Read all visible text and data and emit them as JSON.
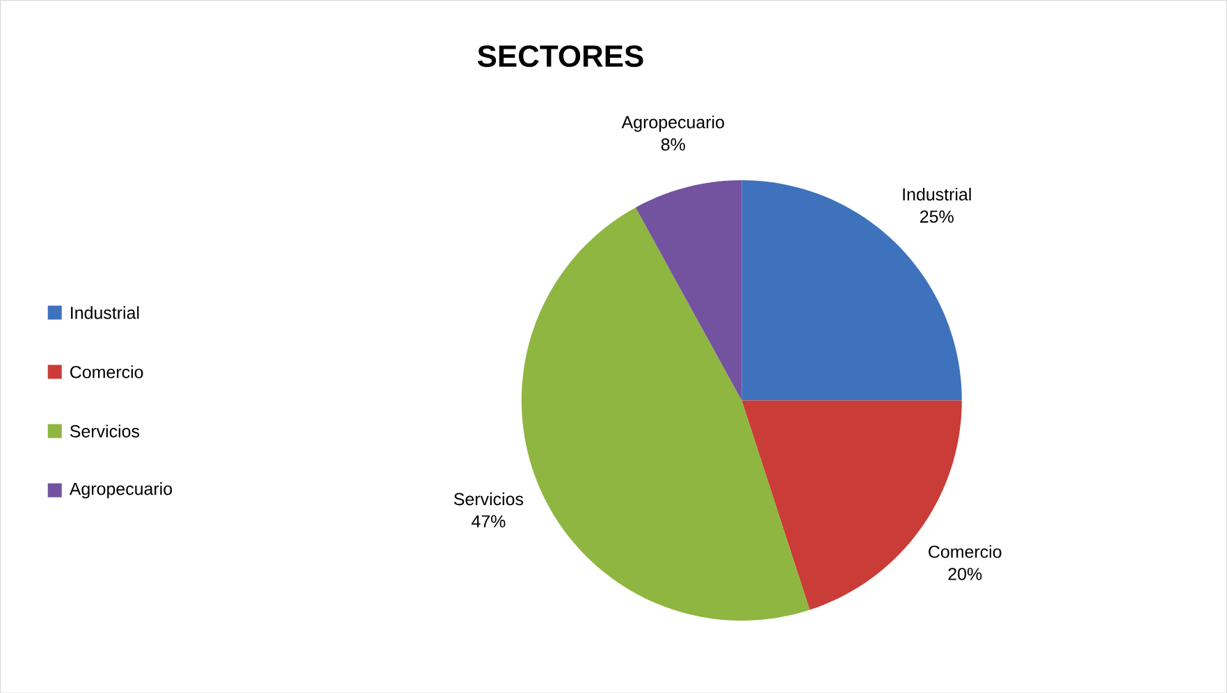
{
  "chart_data": {
    "type": "pie",
    "title": "SECTORES",
    "categories": [
      "Industrial",
      "Comercio",
      "Servicios",
      "Agropecuario"
    ],
    "values": [
      25,
      20,
      47,
      8
    ],
    "value_labels": [
      "25%",
      "20%",
      "47%",
      "8%"
    ],
    "colors": [
      "#3f72bd",
      "#c93c37",
      "#8fb640",
      "#7352a0"
    ],
    "legend": "left"
  }
}
